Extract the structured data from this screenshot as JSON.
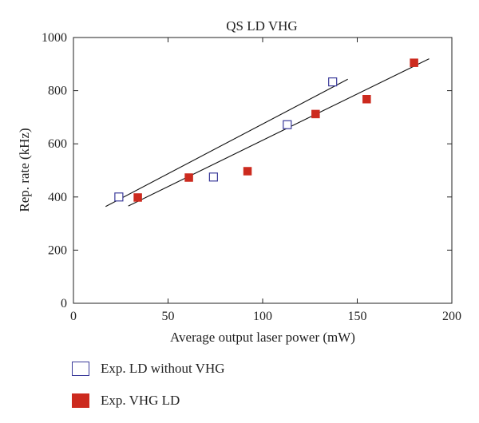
{
  "chart_data": {
    "type": "scatter",
    "title": "QS LD VHG",
    "xlabel": "Average output laser power (mW)",
    "ylabel": "Rep. rate (kHz)",
    "xlim": [
      0,
      200
    ],
    "ylim": [
      0,
      1000
    ],
    "xticks": [
      0,
      50,
      100,
      150,
      200
    ],
    "yticks": [
      0,
      200,
      400,
      600,
      800,
      1000
    ],
    "grid": false,
    "legend_position": "bottom",
    "series": [
      {
        "name": "Exp. LD without VHG",
        "marker": "open-square",
        "color": "#3a3a9a",
        "x": [
          24,
          74,
          113,
          137
        ],
        "y": [
          400,
          475,
          672,
          833
        ],
        "fit_line": {
          "x": [
            17,
            145
          ],
          "y": [
            364,
            843
          ]
        }
      },
      {
        "name": "Exp. VHG LD",
        "marker": "filled-square",
        "color": "#cc2a1e",
        "x": [
          34,
          61,
          92,
          128,
          155,
          180
        ],
        "y": [
          398,
          473,
          497,
          712,
          768,
          905
        ],
        "fit_line": {
          "x": [
            29,
            188
          ],
          "y": [
            366,
            920
          ]
        }
      }
    ]
  }
}
